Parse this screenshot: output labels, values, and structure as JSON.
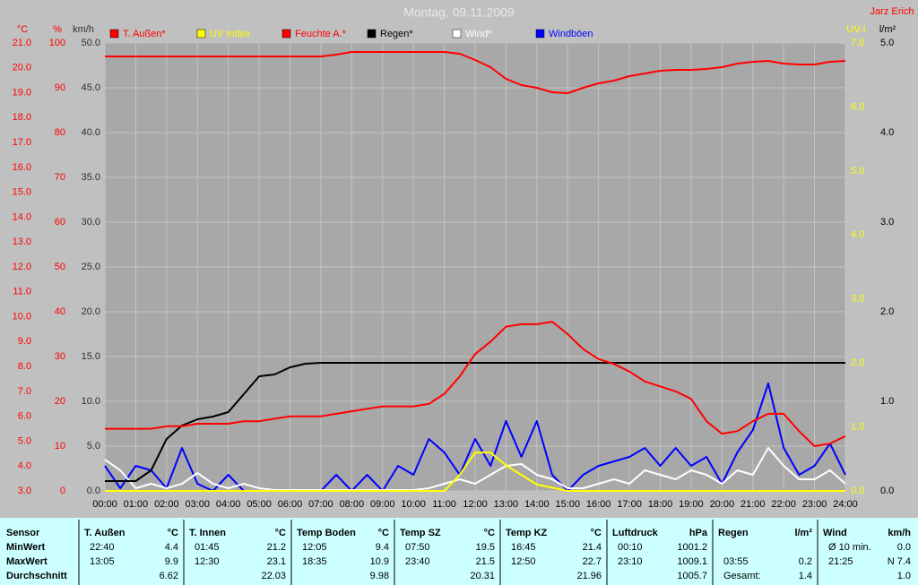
{
  "chart_data": {
    "type": "line",
    "title": "Montag, 09.11.2009",
    "author": "Jarz Erich",
    "grid": true,
    "legend": "top",
    "xlim": [
      0,
      24
    ],
    "xticks": [
      {
        "value": 0,
        "label": "00:00"
      },
      {
        "value": 1,
        "label": "01:00"
      },
      {
        "value": 2,
        "label": "02:00"
      },
      {
        "value": 3,
        "label": "03:00"
      },
      {
        "value": 4,
        "label": "04:00"
      },
      {
        "value": 5,
        "label": "05:00"
      },
      {
        "value": 6,
        "label": "06:00"
      },
      {
        "value": 7,
        "label": "07:00"
      },
      {
        "value": 8,
        "label": "08:00"
      },
      {
        "value": 9,
        "label": "09:00"
      },
      {
        "value": 10,
        "label": "10:00"
      },
      {
        "value": 11,
        "label": "11:00"
      },
      {
        "value": 12,
        "label": "12:00"
      },
      {
        "value": 13,
        "label": "13:00"
      },
      {
        "value": 14,
        "label": "14:00"
      },
      {
        "value": 15,
        "label": "15:00"
      },
      {
        "value": 16,
        "label": "16:00"
      },
      {
        "value": 17,
        "label": "17:00"
      },
      {
        "value": 18,
        "label": "18:00"
      },
      {
        "value": 19,
        "label": "19:00"
      },
      {
        "value": 20,
        "label": "20:00"
      },
      {
        "value": 21,
        "label": "21:00"
      },
      {
        "value": 22,
        "label": "22:00"
      },
      {
        "value": 23,
        "label": "23:00"
      },
      {
        "value": 24,
        "label": "24:00"
      }
    ],
    "y_axes": [
      {
        "title": "°C",
        "color": "#ff0000",
        "lim": [
          3,
          21
        ],
        "ticks": [
          {
            "value": 3,
            "label": "3.0"
          },
          {
            "value": 4,
            "label": "4.0"
          },
          {
            "value": 5,
            "label": "5.0"
          },
          {
            "value": 6,
            "label": "6.0"
          },
          {
            "value": 7,
            "label": "7.0"
          },
          {
            "value": 8,
            "label": "8.0"
          },
          {
            "value": 9,
            "label": "9.0"
          },
          {
            "value": 10,
            "label": "10.0"
          },
          {
            "value": 11,
            "label": "11.0"
          },
          {
            "value": 12,
            "label": "12.0"
          },
          {
            "value": 13,
            "label": "13.0"
          },
          {
            "value": 14,
            "label": "14.0"
          },
          {
            "value": 15,
            "label": "15.0"
          },
          {
            "value": 16,
            "label": "16.0"
          },
          {
            "value": 17,
            "label": "17.0"
          },
          {
            "value": 18,
            "label": "18.0"
          },
          {
            "value": 19,
            "label": "19.0"
          },
          {
            "value": 20,
            "label": "20.0"
          },
          {
            "value": 21,
            "label": "21.0"
          }
        ]
      },
      {
        "title": "%",
        "color": "#ff0000",
        "lim": [
          0,
          100
        ],
        "ticks": [
          0,
          10,
          20,
          30,
          40,
          50,
          60,
          70,
          80,
          90,
          100
        ]
      },
      {
        "title": "km/h",
        "color": "#303030",
        "lim": [
          0,
          50
        ],
        "grid": true,
        "ticks": [
          {
            "value": 0,
            "label": "0.0"
          },
          {
            "value": 5,
            "label": "5.0"
          },
          {
            "value": 10,
            "label": "10.0"
          },
          {
            "value": 15,
            "label": "15.0"
          },
          {
            "value": 20,
            "label": "20.0"
          },
          {
            "value": 25,
            "label": "25.0"
          },
          {
            "value": 30,
            "label": "30.0"
          },
          {
            "value": 35,
            "label": "35.0"
          },
          {
            "value": 40,
            "label": "40.0"
          },
          {
            "value": 45,
            "label": "45.0"
          },
          {
            "value": 50,
            "label": "50.0"
          }
        ]
      },
      {
        "title": "UV-I",
        "color": "#ffff00",
        "lim": [
          0,
          7
        ],
        "ticks": [
          {
            "value": 0,
            "label": "0.0"
          },
          {
            "value": 1,
            "label": "1.0"
          },
          {
            "value": 2,
            "label": "2.0"
          },
          {
            "value": 3,
            "label": "3.0"
          },
          {
            "value": 4,
            "label": "4.0"
          },
          {
            "value": 5,
            "label": "5.0"
          },
          {
            "value": 6,
            "label": "6.0"
          },
          {
            "value": 7,
            "label": "7.0"
          }
        ]
      },
      {
        "title": "l/m²",
        "color": "#000000",
        "lim": [
          0,
          5
        ],
        "ticks": [
          {
            "value": 0,
            "label": "0.0"
          },
          {
            "value": 1,
            "label": "1.0"
          },
          {
            "value": 2,
            "label": "2.0"
          },
          {
            "value": 3,
            "label": "3.0"
          },
          {
            "value": 4,
            "label": "4.0"
          },
          {
            "value": 5,
            "label": "5.0"
          }
        ]
      }
    ],
    "x": [
      0,
      0.5,
      1,
      1.5,
      2,
      2.5,
      3,
      3.5,
      4,
      4.5,
      5,
      5.5,
      6,
      6.5,
      7,
      7.5,
      8,
      8.5,
      9,
      9.5,
      10,
      10.5,
      11,
      11.5,
      12,
      12.5,
      13,
      13.5,
      14,
      14.5,
      15,
      15.5,
      16,
      16.5,
      17,
      17.5,
      18,
      18.5,
      19,
      19.5,
      20,
      20.5,
      21,
      21.5,
      22,
      22.5,
      23,
      23.5,
      24
    ],
    "series": [
      {
        "name": "T. Außen*",
        "color": "#ff0000",
        "axis": 0,
        "values": [
          5.5,
          5.5,
          5.5,
          5.5,
          5.6,
          5.6,
          5.7,
          5.7,
          5.7,
          5.8,
          5.8,
          5.9,
          6.0,
          6.0,
          6.0,
          6.1,
          6.2,
          6.3,
          6.4,
          6.4,
          6.4,
          6.5,
          6.9,
          7.6,
          8.5,
          9.0,
          9.6,
          9.7,
          9.7,
          9.8,
          9.3,
          8.7,
          8.3,
          8.1,
          7.8,
          7.4,
          7.2,
          7.0,
          6.7,
          5.8,
          5.3,
          5.4,
          5.8,
          6.1,
          6.1,
          5.4,
          4.8,
          4.9,
          5.2
        ]
      },
      {
        "name": "UV Index",
        "color": "#ffff00",
        "axis": 3,
        "values": [
          0,
          0,
          0,
          0,
          0,
          0,
          0,
          0,
          0,
          0,
          0,
          0,
          0,
          0,
          0,
          0,
          0,
          0,
          0,
          0,
          0,
          0,
          0,
          0.25,
          0.6,
          0.6,
          0.4,
          0.25,
          0.1,
          0.05,
          0,
          0,
          0,
          0,
          0,
          0,
          0,
          0,
          0,
          0,
          0,
          0,
          0,
          0,
          0,
          0,
          0,
          0,
          0
        ]
      },
      {
        "name": "Feuchte A.*",
        "color": "#ff0000",
        "axis": 1,
        "values": [
          97,
          97,
          97,
          97,
          97,
          97,
          97,
          97,
          97,
          97,
          97,
          97,
          97,
          97,
          97,
          97.4,
          98,
          98,
          98,
          98,
          98,
          98,
          98,
          97.6,
          96.2,
          94.6,
          92,
          90.6,
          90,
          89,
          88.8,
          90,
          91,
          91.6,
          92.6,
          93.2,
          93.8,
          94,
          94,
          94.2,
          94.6,
          95.4,
          95.8,
          96,
          95.4,
          95.2,
          95.2,
          95.8,
          96
        ]
      },
      {
        "name": "Regen*",
        "color": "#000000",
        "axis": 4,
        "values": [
          0.11,
          0.11,
          0.11,
          0.23,
          0.58,
          0.73,
          0.8,
          0.83,
          0.88,
          1.08,
          1.28,
          1.3,
          1.38,
          1.42,
          1.43,
          1.43,
          1.43,
          1.43,
          1.43,
          1.43,
          1.43,
          1.43,
          1.43,
          1.43,
          1.43,
          1.43,
          1.43,
          1.43,
          1.43,
          1.43,
          1.43,
          1.43,
          1.43,
          1.43,
          1.43,
          1.43,
          1.43,
          1.43,
          1.43,
          1.43,
          1.43,
          1.43,
          1.43,
          1.43,
          1.43,
          1.43,
          1.43,
          1.43,
          1.43
        ]
      },
      {
        "name": "Wind*",
        "color": "#ffffff",
        "axis": 2,
        "values": [
          3.5,
          2.3,
          0.3,
          0.8,
          0.3,
          0.8,
          2.0,
          0.8,
          0.3,
          0.8,
          0.3,
          0.1,
          0.1,
          0.1,
          0.1,
          0.1,
          0.1,
          0.1,
          0.1,
          0.1,
          0.1,
          0.3,
          0.8,
          1.3,
          0.8,
          1.8,
          2.8,
          3.0,
          1.8,
          1.3,
          0.3,
          0.3,
          0.8,
          1.3,
          0.8,
          2.3,
          1.8,
          1.3,
          2.3,
          1.8,
          0.8,
          2.3,
          1.8,
          4.8,
          2.8,
          1.3,
          1.3,
          2.3,
          0.8
        ]
      },
      {
        "name": "Windböen",
        "color": "#0000ff",
        "axis": 2,
        "values": [
          2.8,
          0.3,
          2.8,
          2.3,
          0.3,
          4.8,
          0.8,
          0,
          1.8,
          0,
          0,
          0,
          0,
          0,
          0,
          1.8,
          0,
          1.8,
          0,
          2.8,
          1.8,
          5.8,
          4.3,
          1.8,
          5.8,
          2.8,
          7.8,
          3.8,
          7.8,
          1.8,
          0,
          1.8,
          2.8,
          3.3,
          3.8,
          4.8,
          2.8,
          4.8,
          2.8,
          3.8,
          0.8,
          4.3,
          6.8,
          12,
          4.8,
          1.8,
          2.8,
          5.3,
          1.8
        ]
      }
    ]
  },
  "table": {
    "row_labels": [
      "Sensor",
      "MinWert",
      "MaxWert",
      "Durchschnitt"
    ],
    "columns": [
      {
        "name": "T. Außen",
        "unit": "°C",
        "cells": [
          [
            "22:40",
            "4.4"
          ],
          [
            "13:05",
            "9.9"
          ],
          [
            null,
            "6.62"
          ]
        ]
      },
      {
        "name": "T. Innen",
        "unit": "°C",
        "cells": [
          [
            "01:45",
            "21.2"
          ],
          [
            "12:30",
            "23.1"
          ],
          [
            null,
            "22.03"
          ]
        ]
      },
      {
        "name": "Temp Boden",
        "unit": "°C",
        "cells": [
          [
            "12:05",
            "9.4"
          ],
          [
            "18:35",
            "10.9"
          ],
          [
            null,
            "9.98"
          ]
        ]
      },
      {
        "name": "Temp SZ",
        "unit": "°C",
        "cells": [
          [
            "07:50",
            "19.5"
          ],
          [
            "23:40",
            "21.5"
          ],
          [
            null,
            "20.31"
          ]
        ]
      },
      {
        "name": "Temp KZ",
        "unit": "°C",
        "cells": [
          [
            "16:45",
            "21.4"
          ],
          [
            "12:50",
            "22.7"
          ],
          [
            null,
            "21.96"
          ]
        ]
      },
      {
        "name": "Luftdruck",
        "unit": "hPa",
        "cells": [
          [
            "00:10",
            "1001.2"
          ],
          [
            "23:10",
            "1009.1"
          ],
          [
            null,
            "1005.7"
          ]
        ]
      },
      {
        "name": "Regen",
        "unit": "l/m²",
        "cells": [
          [
            null,
            null
          ],
          [
            "03:55",
            "0.2"
          ],
          [
            "Gesamt:",
            "1.4"
          ]
        ]
      },
      {
        "name": "Wind",
        "unit": "km/h",
        "cells": [
          [
            "Ø 10 min.",
            "0.0"
          ],
          [
            "21:25",
            "N 7.4"
          ],
          [
            null,
            "1.0"
          ]
        ]
      }
    ]
  }
}
